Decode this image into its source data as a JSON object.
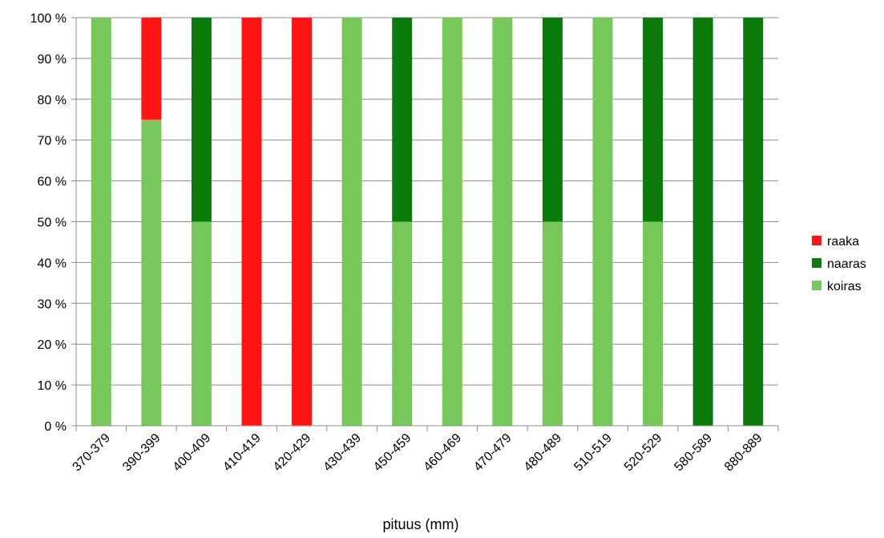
{
  "chart_data": {
    "type": "bar",
    "stacked": "percent",
    "title": "",
    "xlabel": "pituus (mm)",
    "ylabel": "",
    "ylim": [
      0,
      100
    ],
    "ytick_labels": [
      "0 %",
      "10 %",
      "20 %",
      "30 %",
      "40 %",
      "50 %",
      "60 %",
      "70 %",
      "80 %",
      "90 %",
      "100 %"
    ],
    "grid": true,
    "legend_position": "right",
    "categories": [
      "370-379",
      "390-399",
      "400-409",
      "410-419",
      "420-429",
      "430-439",
      "450-459",
      "460-469",
      "470-479",
      "480-489",
      "510-519",
      "520-529",
      "580-589",
      "880-889"
    ],
    "series": [
      {
        "name": "koiras",
        "color": "#77c85a",
        "values": [
          100,
          75,
          50,
          0,
          0,
          100,
          50,
          100,
          100,
          50,
          100,
          50,
          0,
          0
        ]
      },
      {
        "name": "naaras",
        "color": "#0b7c0b",
        "values": [
          0,
          0,
          50,
          0,
          0,
          0,
          50,
          0,
          0,
          50,
          0,
          50,
          100,
          100
        ]
      },
      {
        "name": "raaka",
        "color": "#ff1414",
        "values": [
          0,
          25,
          0,
          100,
          100,
          0,
          0,
          0,
          0,
          0,
          0,
          0,
          0,
          0
        ]
      }
    ],
    "legend_order": [
      "raaka",
      "naaras",
      "koiras"
    ]
  }
}
